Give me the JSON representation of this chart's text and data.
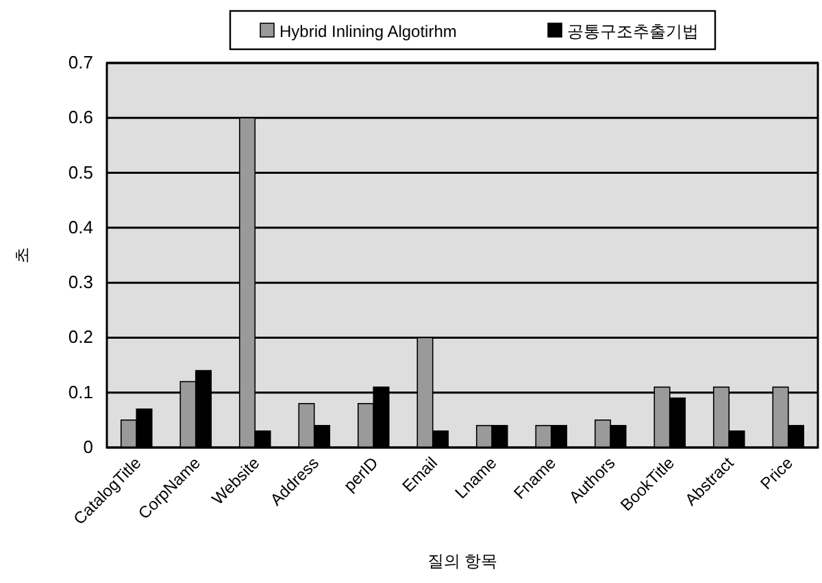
{
  "chart_data": {
    "type": "bar",
    "ylabel": "초",
    "xlabel": "질의 항목",
    "categories": [
      "CatalogTitle",
      "CorpName",
      "Website",
      "Address",
      "perID",
      "Email",
      "Lname",
      "Fname",
      "Authors",
      "BookTitle",
      "Abstract",
      "Price"
    ],
    "series": [
      {
        "name": "Hybrid Inlining Algotirhm",
        "color": "#9a9a9a",
        "values": [
          0.05,
          0.12,
          0.6,
          0.08,
          0.08,
          0.2,
          0.04,
          0.04,
          0.05,
          0.11,
          0.11,
          0.11
        ]
      },
      {
        "name": "공통구조추출기법",
        "color": "#000000",
        "values": [
          0.07,
          0.14,
          0.03,
          0.04,
          0.11,
          0.03,
          0.04,
          0.04,
          0.04,
          0.09,
          0.03,
          0.04
        ]
      }
    ],
    "ylim": [
      0,
      0.7
    ],
    "yticks": [
      0,
      0.1,
      0.2,
      0.3,
      0.4,
      0.5,
      0.6,
      0.7
    ],
    "grid": "y",
    "legend": "top"
  }
}
